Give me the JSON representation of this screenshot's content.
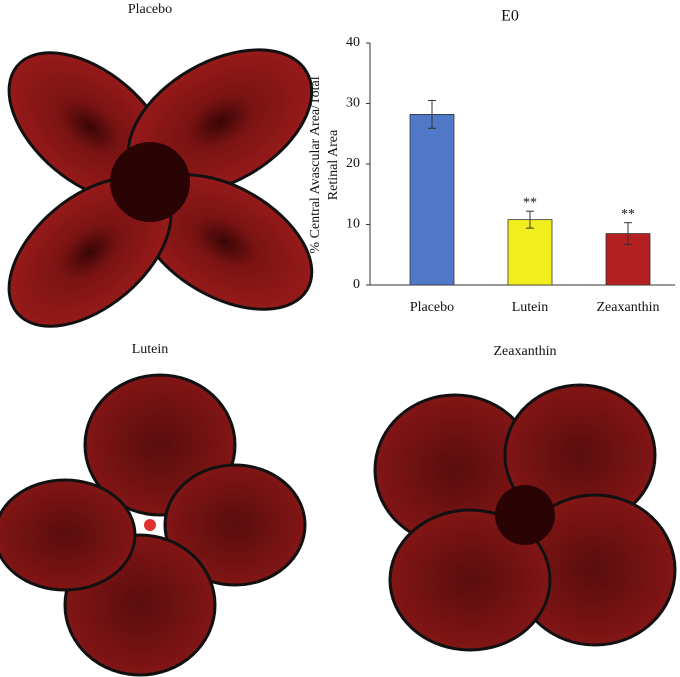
{
  "panels": [
    "Placebo",
    "Lutein",
    "Zeaxanthin"
  ],
  "chart_data": {
    "type": "bar",
    "title": "E0",
    "ylabel": [
      "% Central Avascular Area/Total",
      "Retinal Area"
    ],
    "categories": [
      "Placebo",
      "Lutein",
      "Zeaxanthin"
    ],
    "values": [
      28.2,
      10.8,
      8.5
    ],
    "errors": [
      2.3,
      1.4,
      1.8
    ],
    "colors": [
      "#4f79c7",
      "#f2ee1e",
      "#b3201f"
    ],
    "annotations": [
      {
        "category": "Lutein",
        "text": "**"
      },
      {
        "category": "Zeaxanthin",
        "text": "**"
      }
    ],
    "ylim": [
      0,
      40
    ],
    "yticks": [
      0,
      10,
      20,
      30,
      40
    ],
    "grid": false
  }
}
